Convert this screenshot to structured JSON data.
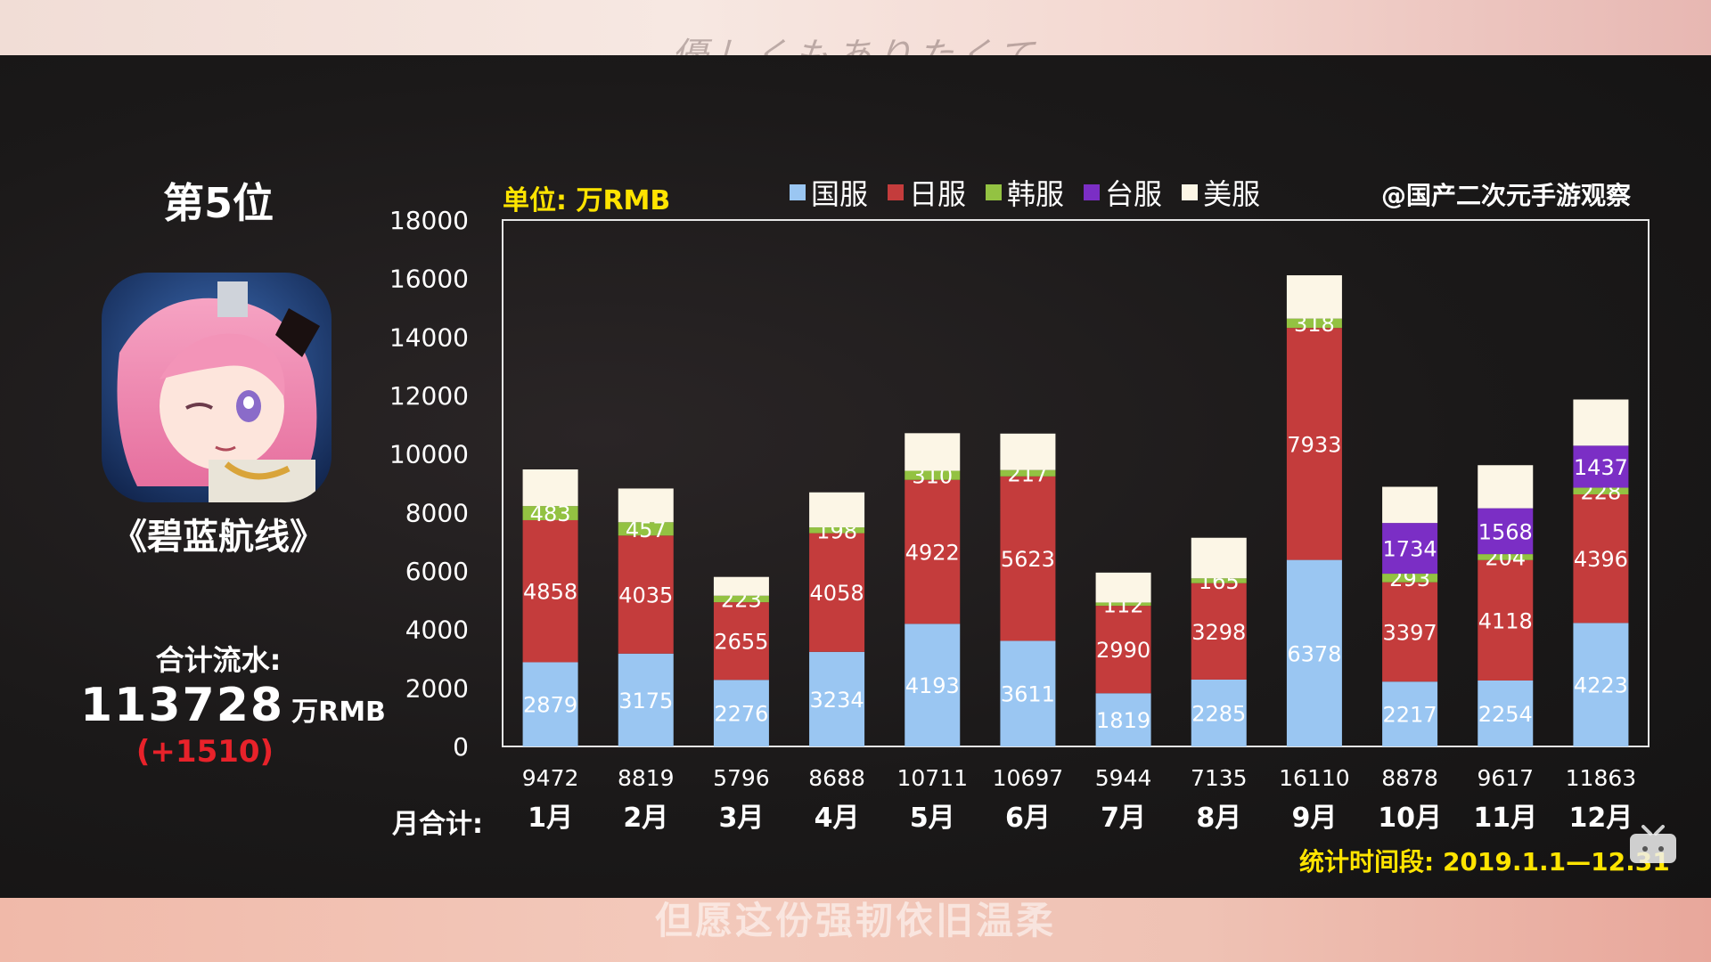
{
  "subtitles": {
    "top": "優しくもありたくて",
    "bottom": "但愿这份强韧依旧温柔"
  },
  "rank": "第5位",
  "game": {
    "title": "《碧蓝航线》",
    "total_label": "合计流水:",
    "total_value": "113728",
    "total_unit": "万RMB",
    "total_change": "(+1510)"
  },
  "chart_header": {
    "unit_label": "单位: 万RMB",
    "watermark": "@国产二次元手游观察",
    "month_total_label": "月合计:",
    "period": "统计时间段: 2019.1.1—12.31"
  },
  "colors": {
    "guofu": "#9ac6f2",
    "rifu": "#c43c3c",
    "hanfu": "#93c242",
    "taifu": "#7b2ec5",
    "meifu": "#fcf6e6",
    "highlight": "#ffe400",
    "change": "#e8222a"
  },
  "chart_data": {
    "type": "bar",
    "stacked": true,
    "categories": [
      "1月",
      "2月",
      "3月",
      "4月",
      "5月",
      "6月",
      "7月",
      "8月",
      "9月",
      "10月",
      "11月",
      "12月"
    ],
    "month_totals": [
      "9472",
      "8819",
      "5796",
      "8688",
      "10711",
      "10697",
      "5944",
      "7135",
      "16110",
      "8878",
      "9617",
      "11863"
    ],
    "ylim": [
      0,
      18000
    ],
    "yticks": [
      0,
      2000,
      4000,
      6000,
      8000,
      10000,
      12000,
      14000,
      16000,
      18000
    ],
    "series": [
      {
        "name": "国服",
        "color_key": "guofu",
        "label_color": "#ffffff",
        "values": [
          2879,
          3175,
          2276,
          3234,
          4193,
          3611,
          1819,
          2285,
          6378,
          2217,
          2254,
          4223
        ]
      },
      {
        "name": "日服",
        "color_key": "rifu",
        "label_color": "#ffffff",
        "values": [
          4858,
          4035,
          2655,
          4058,
          4922,
          5623,
          2990,
          3298,
          7933,
          3397,
          4118,
          4396
        ]
      },
      {
        "name": "韩服",
        "color_key": "hanfu",
        "label_color": "#ffffff",
        "values": [
          483,
          457,
          223,
          198,
          310,
          217,
          112,
          165,
          318,
          293,
          204,
          228
        ]
      },
      {
        "name": "台服",
        "color_key": "taifu",
        "label_color": "#ffffff",
        "values": [
          null,
          null,
          null,
          null,
          null,
          null,
          null,
          null,
          null,
          1734,
          1568,
          1437
        ]
      },
      {
        "name": "美服",
        "color_key": "meifu",
        "label_color": "#ffffff",
        "values": [
          1252,
          1152,
          642,
          1198,
          1286,
          1246,
          1023,
          1387,
          1481,
          1237,
          1473,
          1579
        ]
      }
    ],
    "grid": false,
    "legend_position": "top"
  }
}
